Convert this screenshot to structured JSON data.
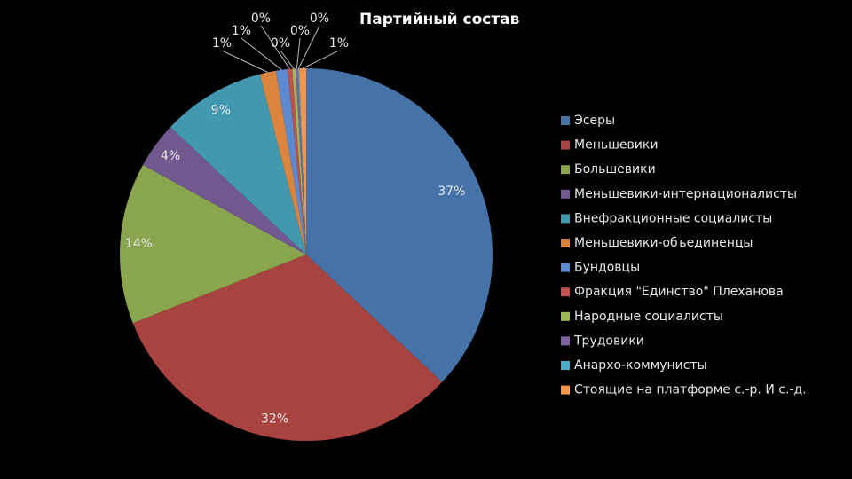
{
  "chart_data": {
    "type": "pie",
    "title": "Партийный состав",
    "categories": [
      "Эсеры",
      "Меньшевики",
      "Большевики",
      "Меньшевики-интернационалисты",
      "Внефракционные социалисты",
      "Меньшевики-объединенцы",
      "Бундовцы",
      "Фракция \"Единство\" Плеханова",
      "Народные социалисты",
      "Трудовики",
      "Анархо-коммунисты",
      "Стоящие на платформе с.-р. И с.-д."
    ],
    "values": [
      37,
      32,
      14,
      4,
      9,
      1.4,
      1.0,
      0.4,
      0.3,
      0.2,
      0.1,
      0.6
    ],
    "value_labels": [
      "37%",
      "32%",
      "14%",
      "4%",
      "9%",
      "1%",
      "1%",
      "0%",
      "0%",
      "0%",
      "0%",
      "1%"
    ],
    "colors": [
      "#4572a7",
      "#a9433f",
      "#89a54e",
      "#71588f",
      "#4198af",
      "#db843d",
      "#5b8ad0",
      "#c0504d",
      "#9bbb59",
      "#7e62a0",
      "#4bacc6",
      "#f79646"
    ],
    "legend": "right"
  }
}
